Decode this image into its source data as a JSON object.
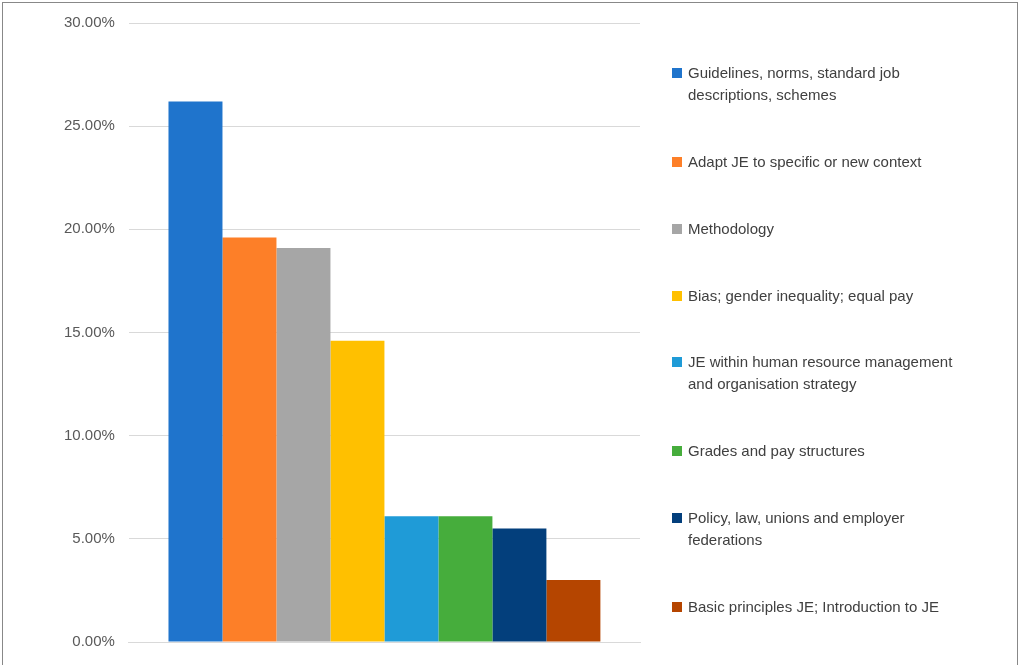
{
  "chart_data": {
    "type": "bar",
    "categories": [
      null
    ],
    "series": [
      {
        "name": "Guidelines, norms, standard job descriptions, schemes",
        "color": "#1f74cc",
        "values": [
          26.2
        ]
      },
      {
        "name": "Adapt JE to specific or new context",
        "color": "#fd7f28",
        "values": [
          19.6
        ]
      },
      {
        "name": "Methodology",
        "color": "#a6a6a6",
        "values": [
          19.1
        ]
      },
      {
        "name": "Bias; gender inequality; equal pay",
        "color": "#ffc000",
        "values": [
          14.6
        ]
      },
      {
        "name": "JE within human resource management and organisation strategy",
        "color": "#1f9bd7",
        "values": [
          6.1
        ]
      },
      {
        "name": "Grades and pay structures",
        "color": "#46ad3c",
        "values": [
          6.1
        ]
      },
      {
        "name": "Policy, law, unions and employer federations",
        "color": "#033f7c",
        "values": [
          5.5
        ]
      },
      {
        "name": "Basic principles JE; Introduction to JE",
        "color": "#b54500",
        "values": [
          3.0
        ]
      }
    ],
    "ylim": [
      0,
      30
    ],
    "yticks": [
      {
        "value": 0,
        "label": "0.00%"
      },
      {
        "value": 5,
        "label": "5.00%"
      },
      {
        "value": 10,
        "label": "10.00%"
      },
      {
        "value": 15,
        "label": "15.00%"
      },
      {
        "value": 20,
        "label": "20.00%"
      },
      {
        "value": 25,
        "label": "25.00%"
      },
      {
        "value": 30,
        "label": "30.00%"
      }
    ],
    "grid": "y",
    "legend": "right"
  }
}
